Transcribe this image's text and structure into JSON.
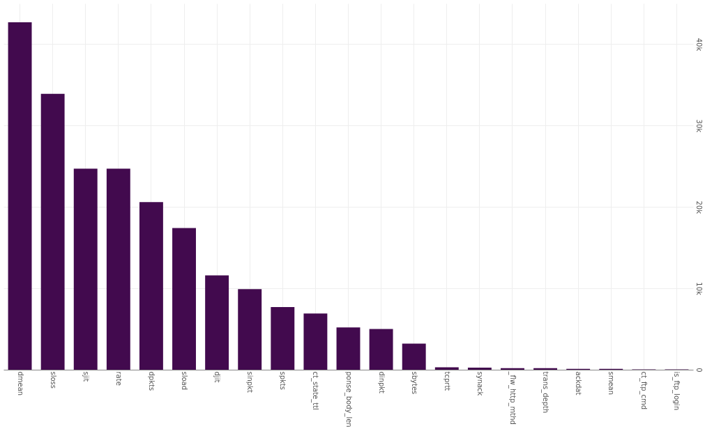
{
  "chart_data": {
    "type": "bar",
    "categories": [
      "dmean",
      "sloss",
      "sjit",
      "rate",
      "dpkts",
      "sload",
      "djit",
      "sinpkt",
      "spkts",
      "ct_state_ttl",
      "ponse_body_len",
      "dinpkt",
      "sbytes",
      "tcprtt",
      "synack",
      "_flw_http_mthd",
      "trans_depth",
      "ackdat",
      "smean",
      "ct_ftp_cmd",
      "is_ftp_login"
    ],
    "values": [
      42700,
      33900,
      24700,
      24700,
      20600,
      17400,
      11600,
      9900,
      7700,
      6900,
      5200,
      5000,
      3200,
      300,
      250,
      200,
      200,
      100,
      100,
      50,
      50
    ],
    "color": "#420a4e",
    "ylim": [
      0,
      45000
    ],
    "yticks": [
      {
        "value": 0,
        "label": "0"
      },
      {
        "value": 10000,
        "label": "10k"
      },
      {
        "value": 20000,
        "label": "20k"
      },
      {
        "value": 30000,
        "label": "30k"
      },
      {
        "value": 40000,
        "label": "40k"
      }
    ],
    "grid": true
  }
}
